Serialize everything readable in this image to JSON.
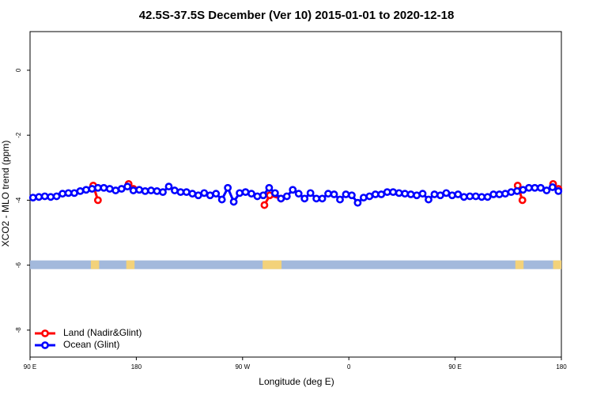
{
  "chart_data": {
    "type": "line",
    "title": "42.5S-37.5S December (Ver 10)   2015-01-01 to 2020-12-18",
    "x_label": "Longitude (deg E)",
    "y_label": "XCO2 - MLO trend (ppm)",
    "xlim": [
      90,
      540
    ],
    "ylim": [
      -8.83,
      1.19
    ],
    "xticks": [
      {
        "value": 90,
        "label": "90 E"
      },
      180,
      {
        "value": 270,
        "label": "90 W"
      },
      {
        "value": 360,
        "label": "0"
      },
      {
        "value": 450,
        "label": "90 E"
      },
      {
        "value": 540,
        "label": "180"
      }
    ],
    "yticks": [
      0,
      -2,
      -4,
      -6,
      -8
    ],
    "legend": "bottom-left",
    "mask_level": -6,
    "mask_color": "#a3b9dc",
    "land_mask_color": "#f3d27a",
    "land_segments": [
      [
        141.5,
        148.5
      ],
      [
        171.5,
        178.5
      ],
      [
        287,
        303
      ],
      [
        501,
        508
      ],
      [
        533,
        540
      ]
    ],
    "series": [
      {
        "name": "Land (Nadir&Glint)",
        "color": "#ff0000",
        "x": [
          143.5,
          147.5,
          null,
          173.5,
          177.5,
          null,
          288.5,
          293,
          302.5,
          null,
          503,
          507,
          null,
          533,
          537.5
        ],
        "values": [
          -3.55,
          -4.0,
          null,
          -3.5,
          -3.65,
          null,
          -4.15,
          -3.85,
          -3.95,
          null,
          -3.55,
          -4.0,
          null,
          -3.5,
          -3.65
        ]
      },
      {
        "name": "Ocean (Glint)",
        "color": "#0000ff",
        "x": [
          92.5,
          97.5,
          102.5,
          107.5,
          112.5,
          117.5,
          122.5,
          127.5,
          132.5,
          137.5,
          142.5,
          147.5,
          152.5,
          157.5,
          162.5,
          167.5,
          172.5,
          177.5,
          182.5,
          187.5,
          192.5,
          197.5,
          202.5,
          207.5,
          212.5,
          217.5,
          222.5,
          227.5,
          232.5,
          237.5,
          242.5,
          247.5,
          252.5,
          257.5,
          262.5,
          267.5,
          272.5,
          277.5,
          282.5,
          287.5,
          292.5,
          297.5,
          302.5,
          307.5,
          312.5,
          317.5,
          322.5,
          327.5,
          332.5,
          337.5,
          342.5,
          347.5,
          352.5,
          357.5,
          362.5,
          367.5,
          372.5,
          377.5,
          382.5,
          387.5,
          392.5,
          397.5,
          402.5,
          407.5,
          412.5,
          417.5,
          422.5,
          427.5,
          432.5,
          437.5,
          442.5,
          447.5,
          452.5,
          457.5,
          462.5,
          467.5,
          472.5,
          477.5,
          482.5,
          487.5,
          492.5,
          497.5,
          502.5,
          507.5,
          512.5,
          517.5,
          522.5,
          527.5,
          532.5,
          537.5
        ],
        "values": [
          -3.92,
          -3.9,
          -3.88,
          -3.9,
          -3.88,
          -3.8,
          -3.78,
          -3.78,
          -3.72,
          -3.68,
          -3.65,
          -3.62,
          -3.62,
          -3.65,
          -3.7,
          -3.65,
          -3.58,
          -3.7,
          -3.68,
          -3.72,
          -3.7,
          -3.72,
          -3.75,
          -3.58,
          -3.7,
          -3.75,
          -3.75,
          -3.8,
          -3.85,
          -3.78,
          -3.85,
          -3.8,
          -3.98,
          -3.62,
          -4.05,
          -3.78,
          -3.75,
          -3.8,
          -3.88,
          -3.85,
          -3.62,
          -3.78,
          -3.95,
          -3.88,
          -3.68,
          -3.8,
          -3.95,
          -3.78,
          -3.95,
          -3.95,
          -3.8,
          -3.82,
          -3.98,
          -3.82,
          -3.85,
          -4.08,
          -3.92,
          -3.88,
          -3.82,
          -3.82,
          -3.75,
          -3.75,
          -3.78,
          -3.8,
          -3.82,
          -3.85,
          -3.8,
          -3.98,
          -3.82,
          -3.85,
          -3.78,
          -3.85,
          -3.82,
          -3.9,
          -3.88,
          -3.88,
          -3.9,
          -3.9,
          -3.82,
          -3.82,
          -3.8,
          -3.75,
          -3.72,
          -3.68,
          -3.62,
          -3.62,
          -3.62,
          -3.7,
          -3.6,
          -3.72
        ]
      }
    ]
  }
}
